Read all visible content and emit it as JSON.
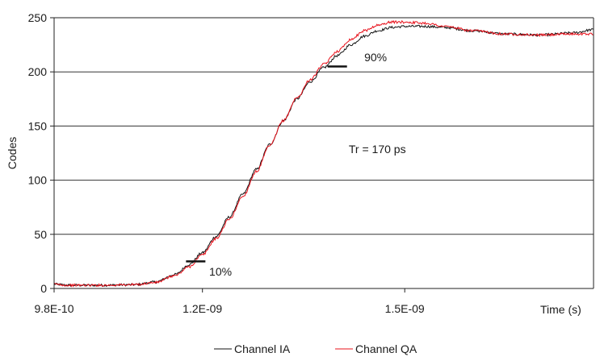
{
  "chart_data": {
    "type": "line",
    "xlabel": "Time (s)",
    "ylabel": "Codes",
    "xlim": [
      9.8e-10,
      1.78e-09
    ],
    "ylim": [
      0,
      250
    ],
    "x_ticks": [
      9.8e-10,
      1.2e-09,
      1.5e-09
    ],
    "x_tick_labels": [
      "9.8E-10",
      "1.2E-09",
      "1.5E-09"
    ],
    "y_ticks": [
      0,
      50,
      100,
      150,
      200,
      250
    ],
    "y_tick_labels": [
      "0",
      "50",
      "100",
      "150",
      "200",
      "250"
    ],
    "grid": "horizontal",
    "legend_position": "bottom",
    "series": [
      {
        "name": "Channel IA",
        "color": "#111111",
        "points": [
          [
            9.8e-10,
            4
          ],
          [
            1e-09,
            3
          ],
          [
            1.05e-09,
            3
          ],
          [
            1.1e-09,
            3.5
          ],
          [
            1.13e-09,
            6
          ],
          [
            1.16e-09,
            13
          ],
          [
            1.18e-09,
            22
          ],
          [
            1.2e-09,
            33
          ],
          [
            1.22e-09,
            48
          ],
          [
            1.24e-09,
            66
          ],
          [
            1.26e-09,
            87
          ],
          [
            1.28e-09,
            110
          ],
          [
            1.3e-09,
            133
          ],
          [
            1.32e-09,
            155
          ],
          [
            1.34e-09,
            175
          ],
          [
            1.36e-09,
            191
          ],
          [
            1.38e-09,
            204
          ],
          [
            1.4e-09,
            215
          ],
          [
            1.42e-09,
            225
          ],
          [
            1.44e-09,
            233
          ],
          [
            1.46e-09,
            238
          ],
          [
            1.48e-09,
            241
          ],
          [
            1.5e-09,
            242
          ],
          [
            1.53e-09,
            242
          ],
          [
            1.56e-09,
            241
          ],
          [
            1.6e-09,
            238
          ],
          [
            1.65e-09,
            235
          ],
          [
            1.7e-09,
            234
          ],
          [
            1.75e-09,
            236
          ],
          [
            1.78e-09,
            239
          ]
        ]
      },
      {
        "name": "Channel QA",
        "color": "#e8101a",
        "points": [
          [
            9.8e-10,
            4
          ],
          [
            1e-09,
            3
          ],
          [
            1.05e-09,
            3
          ],
          [
            1.1e-09,
            3.5
          ],
          [
            1.13e-09,
            5.5
          ],
          [
            1.16e-09,
            12
          ],
          [
            1.18e-09,
            20
          ],
          [
            1.2e-09,
            31
          ],
          [
            1.22e-09,
            46
          ],
          [
            1.24e-09,
            64
          ],
          [
            1.26e-09,
            85
          ],
          [
            1.28e-09,
            108
          ],
          [
            1.3e-09,
            132
          ],
          [
            1.32e-09,
            155
          ],
          [
            1.34e-09,
            176
          ],
          [
            1.36e-09,
            193
          ],
          [
            1.38e-09,
            207
          ],
          [
            1.4e-09,
            219
          ],
          [
            1.42e-09,
            230
          ],
          [
            1.44e-09,
            238
          ],
          [
            1.46e-09,
            243
          ],
          [
            1.48e-09,
            246
          ],
          [
            1.5e-09,
            246
          ],
          [
            1.53e-09,
            245
          ],
          [
            1.56e-09,
            242
          ],
          [
            1.6e-09,
            238
          ],
          [
            1.65e-09,
            235
          ],
          [
            1.7e-09,
            234
          ],
          [
            1.75e-09,
            235
          ],
          [
            1.78e-09,
            235
          ]
        ]
      }
    ],
    "markers": [
      {
        "label": "10%",
        "x": 1.19e-09,
        "y": 25
      },
      {
        "label": "90%",
        "x": 1.4e-09,
        "y": 205
      }
    ],
    "annotations": [
      {
        "text": "Tr = 170 ps",
        "x": 1.42e-09,
        "y": 125
      }
    ]
  }
}
